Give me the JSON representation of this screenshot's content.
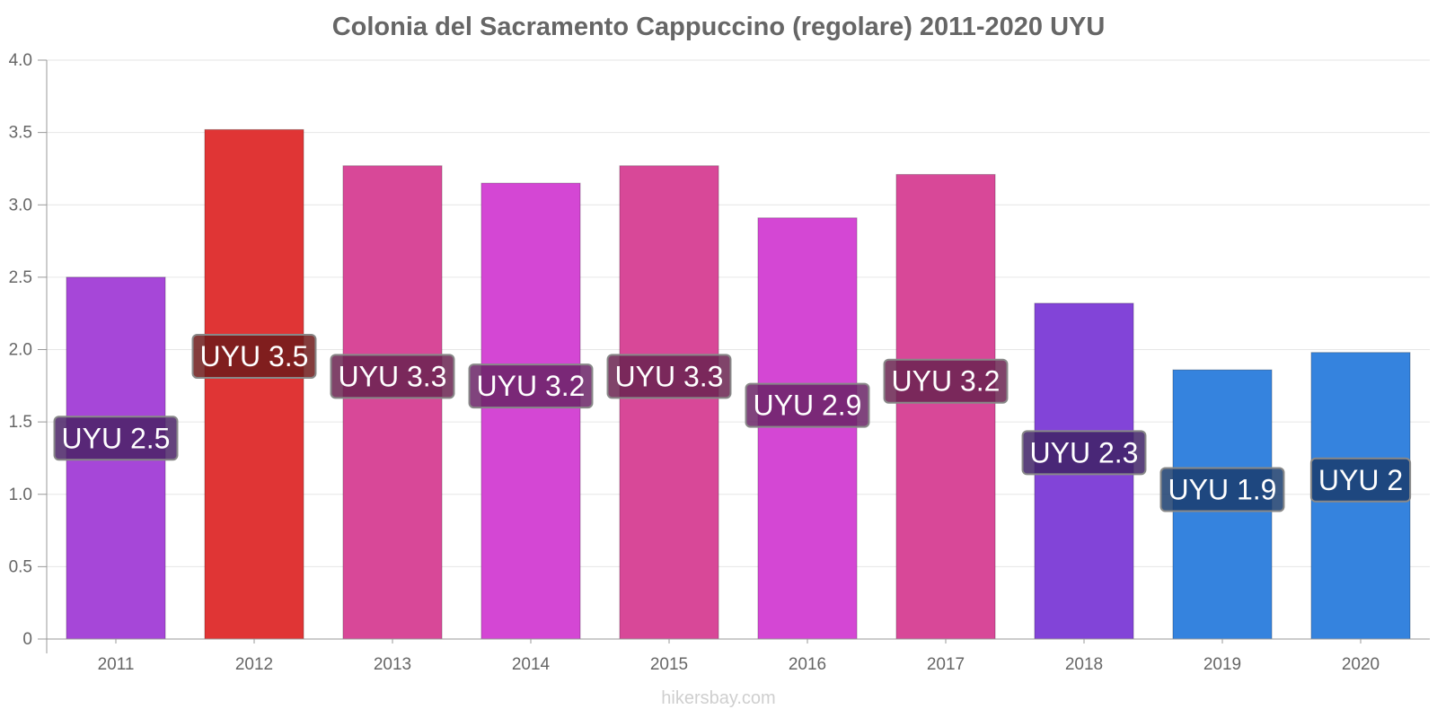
{
  "chart_data": {
    "type": "bar",
    "title": "Colonia del Sacramento Cappuccino (regolare) 2011-2020 UYU",
    "xlabel": "",
    "ylabel": "",
    "categories": [
      "2011",
      "2012",
      "2013",
      "2014",
      "2015",
      "2016",
      "2017",
      "2018",
      "2019",
      "2020"
    ],
    "values": [
      2.5,
      3.52,
      3.27,
      3.15,
      3.27,
      2.91,
      3.21,
      2.32,
      1.86,
      1.98
    ],
    "data_labels": [
      "UYU 2.5",
      "UYU 3.5",
      "UYU 3.3",
      "UYU 3.2",
      "UYU 3.3",
      "UYU 2.9",
      "UYU 3.2",
      "UYU 2.3",
      "UYU 1.9",
      "UYU 2"
    ],
    "bar_colors": [
      "#a647d8",
      "#e03535",
      "#d84898",
      "#d447d4",
      "#d84898",
      "#d447d4",
      "#d84898",
      "#8244d8",
      "#3583de",
      "#3583de"
    ],
    "label_box_colors": [
      "#4a2266",
      "#6e1a1a",
      "#6a2350",
      "#6a2366",
      "#6a2350",
      "#6a2366",
      "#6a2350",
      "#3f2266",
      "#1a3d6e",
      "#1a3d6e"
    ],
    "ylim": [
      0,
      4
    ],
    "yticks": [
      0,
      0.5,
      1,
      1.5,
      2,
      2.5,
      3,
      3.5,
      4
    ],
    "ytick_labels": [
      "0",
      "0.5",
      "1.0",
      "1.5",
      "2.0",
      "2.5",
      "3.0",
      "3.5",
      "4.0"
    ],
    "grid": true,
    "legend": "none"
  },
  "watermark": "hikersbay.com"
}
